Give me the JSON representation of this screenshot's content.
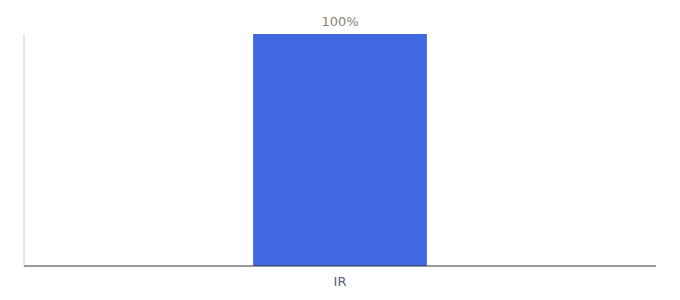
{
  "chart_data": {
    "type": "bar",
    "categories": [
      "IR"
    ],
    "values": [
      100
    ],
    "value_labels": [
      "100%"
    ],
    "data_labels": true,
    "color": "#4169e1",
    "ylim": [
      0,
      100
    ],
    "grid": false,
    "tick_labels": "x"
  }
}
